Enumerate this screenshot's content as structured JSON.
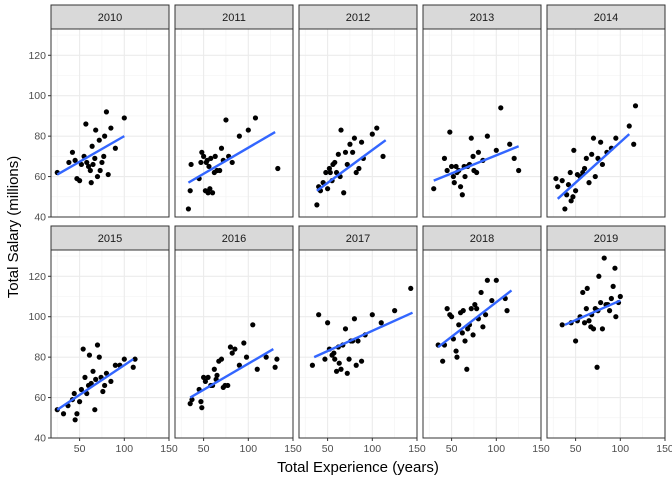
{
  "chart_data": {
    "type": "scatter",
    "facet_layout": "2 rows x 5 columns",
    "xlabel": "Total Experience (years)",
    "ylabel": "Total Salary (millions)",
    "xlim": [
      18,
      150
    ],
    "ylim": [
      40,
      133
    ],
    "x_ticks": [
      50,
      100,
      150
    ],
    "y_ticks": [
      40,
      60,
      80,
      100,
      120
    ],
    "x_tick_labels": [
      "50",
      "100",
      "150"
    ],
    "y_tick_labels": [
      "40",
      "60",
      "80",
      "100",
      "120"
    ],
    "grid": true,
    "point_color": "#000000",
    "fit_line_color": "#3366FF",
    "strip_fill": "#D9D9D9",
    "panels": [
      {
        "label": "2010",
        "fit": {
          "x1": 25,
          "y1": 61,
          "x2": 100,
          "y2": 80
        },
        "points": [
          [
            25,
            62
          ],
          [
            38,
            67
          ],
          [
            42,
            72
          ],
          [
            45,
            68
          ],
          [
            47,
            59
          ],
          [
            50,
            58
          ],
          [
            52,
            66
          ],
          [
            55,
            70
          ],
          [
            57,
            86
          ],
          [
            58,
            67
          ],
          [
            60,
            65
          ],
          [
            62,
            63
          ],
          [
            63,
            57
          ],
          [
            64,
            75
          ],
          [
            65,
            66
          ],
          [
            67,
            69
          ],
          [
            68,
            83
          ],
          [
            70,
            60
          ],
          [
            72,
            78
          ],
          [
            73,
            63
          ],
          [
            75,
            67
          ],
          [
            77,
            70
          ],
          [
            78,
            80
          ],
          [
            80,
            92
          ],
          [
            82,
            61
          ],
          [
            85,
            84
          ],
          [
            90,
            74
          ],
          [
            100,
            89
          ]
        ]
      },
      {
        "label": "2011",
        "fit": {
          "x1": 33,
          "y1": 57,
          "x2": 130,
          "y2": 82
        },
        "points": [
          [
            33,
            44
          ],
          [
            35,
            53
          ],
          [
            36,
            66
          ],
          [
            45,
            59
          ],
          [
            47,
            67
          ],
          [
            48,
            72
          ],
          [
            50,
            70
          ],
          [
            52,
            53
          ],
          [
            53,
            67
          ],
          [
            54,
            68
          ],
          [
            55,
            52
          ],
          [
            56,
            65
          ],
          [
            57,
            54
          ],
          [
            58,
            69
          ],
          [
            60,
            52
          ],
          [
            62,
            62
          ],
          [
            63,
            70
          ],
          [
            65,
            63
          ],
          [
            68,
            63
          ],
          [
            70,
            74
          ],
          [
            72,
            68
          ],
          [
            75,
            88
          ],
          [
            78,
            70
          ],
          [
            82,
            67
          ],
          [
            90,
            80
          ],
          [
            100,
            83
          ],
          [
            108,
            89
          ],
          [
            133,
            64
          ]
        ]
      },
      {
        "label": "2012",
        "fit": {
          "x1": 38,
          "y1": 53,
          "x2": 115,
          "y2": 78
        },
        "points": [
          [
            38,
            46
          ],
          [
            40,
            55
          ],
          [
            42,
            53
          ],
          [
            45,
            57
          ],
          [
            48,
            62
          ],
          [
            50,
            54
          ],
          [
            52,
            64
          ],
          [
            53,
            62
          ],
          [
            55,
            58
          ],
          [
            56,
            66
          ],
          [
            58,
            67
          ],
          [
            60,
            62
          ],
          [
            62,
            71
          ],
          [
            64,
            60
          ],
          [
            65,
            83
          ],
          [
            68,
            52
          ],
          [
            70,
            72
          ],
          [
            72,
            66
          ],
          [
            75,
            76
          ],
          [
            78,
            72
          ],
          [
            80,
            79
          ],
          [
            82,
            62
          ],
          [
            85,
            64
          ],
          [
            88,
            77
          ],
          [
            90,
            69
          ],
          [
            100,
            81
          ],
          [
            105,
            84
          ],
          [
            112,
            70
          ]
        ]
      },
      {
        "label": "2013",
        "fit": {
          "x1": 30,
          "y1": 58,
          "x2": 125,
          "y2": 75
        },
        "points": [
          [
            30,
            54
          ],
          [
            42,
            69
          ],
          [
            45,
            63
          ],
          [
            48,
            82
          ],
          [
            50,
            65
          ],
          [
            52,
            60
          ],
          [
            53,
            57
          ],
          [
            55,
            65
          ],
          [
            56,
            62
          ],
          [
            58,
            63
          ],
          [
            60,
            55
          ],
          [
            62,
            51
          ],
          [
            64,
            65
          ],
          [
            65,
            60
          ],
          [
            68,
            65
          ],
          [
            70,
            66
          ],
          [
            72,
            79
          ],
          [
            74,
            70
          ],
          [
            75,
            63
          ],
          [
            78,
            62
          ],
          [
            80,
            72
          ],
          [
            85,
            68
          ],
          [
            90,
            80
          ],
          [
            100,
            73
          ],
          [
            105,
            94
          ],
          [
            115,
            76
          ],
          [
            120,
            69
          ],
          [
            125,
            63
          ]
        ]
      },
      {
        "label": "2014",
        "fit": {
          "x1": 30,
          "y1": 49,
          "x2": 110,
          "y2": 81
        },
        "points": [
          [
            28,
            59
          ],
          [
            30,
            55
          ],
          [
            35,
            58
          ],
          [
            38,
            44
          ],
          [
            40,
            51
          ],
          [
            42,
            56
          ],
          [
            44,
            62
          ],
          [
            45,
            48
          ],
          [
            47,
            50
          ],
          [
            48,
            73
          ],
          [
            50,
            53
          ],
          [
            52,
            61
          ],
          [
            55,
            60
          ],
          [
            58,
            62
          ],
          [
            60,
            64
          ],
          [
            62,
            69
          ],
          [
            65,
            57
          ],
          [
            68,
            71
          ],
          [
            70,
            79
          ],
          [
            72,
            60
          ],
          [
            75,
            69
          ],
          [
            78,
            77
          ],
          [
            80,
            66
          ],
          [
            85,
            72
          ],
          [
            90,
            74
          ],
          [
            95,
            79
          ],
          [
            110,
            85
          ],
          [
            115,
            76
          ],
          [
            117,
            95
          ]
        ]
      },
      {
        "label": "2015",
        "fit": {
          "x1": 25,
          "y1": 54,
          "x2": 110,
          "y2": 79
        },
        "points": [
          [
            25,
            54
          ],
          [
            32,
            52
          ],
          [
            37,
            56
          ],
          [
            42,
            59
          ],
          [
            44,
            62
          ],
          [
            45,
            49
          ],
          [
            47,
            52
          ],
          [
            50,
            58
          ],
          [
            52,
            64
          ],
          [
            54,
            84
          ],
          [
            56,
            70
          ],
          [
            58,
            62
          ],
          [
            60,
            66
          ],
          [
            61,
            81
          ],
          [
            63,
            67
          ],
          [
            65,
            73
          ],
          [
            67,
            54
          ],
          [
            68,
            69
          ],
          [
            70,
            86
          ],
          [
            72,
            80
          ],
          [
            74,
            70
          ],
          [
            76,
            63
          ],
          [
            78,
            66
          ],
          [
            80,
            72
          ],
          [
            85,
            68
          ],
          [
            90,
            76
          ],
          [
            95,
            76
          ],
          [
            100,
            79
          ],
          [
            110,
            75
          ],
          [
            112,
            79
          ]
        ]
      },
      {
        "label": "2016",
        "fit": {
          "x1": 35,
          "y1": 60,
          "x2": 128,
          "y2": 84
        },
        "points": [
          [
            35,
            57
          ],
          [
            37,
            59
          ],
          [
            45,
            64
          ],
          [
            47,
            58
          ],
          [
            48,
            55
          ],
          [
            50,
            70
          ],
          [
            52,
            68
          ],
          [
            55,
            70
          ],
          [
            58,
            66
          ],
          [
            60,
            66
          ],
          [
            62,
            74
          ],
          [
            64,
            69
          ],
          [
            65,
            71
          ],
          [
            67,
            78
          ],
          [
            70,
            79
          ],
          [
            72,
            65
          ],
          [
            74,
            66
          ],
          [
            77,
            66
          ],
          [
            80,
            85
          ],
          [
            82,
            82
          ],
          [
            85,
            84
          ],
          [
            90,
            76
          ],
          [
            95,
            87
          ],
          [
            98,
            80
          ],
          [
            105,
            96
          ],
          [
            110,
            74
          ],
          [
            120,
            80
          ],
          [
            130,
            75
          ],
          [
            132,
            79
          ]
        ]
      },
      {
        "label": "2017",
        "fit": {
          "x1": 35,
          "y1": 80,
          "x2": 145,
          "y2": 102
        },
        "points": [
          [
            33,
            76
          ],
          [
            40,
            101
          ],
          [
            47,
            79
          ],
          [
            50,
            97
          ],
          [
            52,
            84
          ],
          [
            55,
            81
          ],
          [
            57,
            82
          ],
          [
            58,
            79
          ],
          [
            60,
            73
          ],
          [
            62,
            85
          ],
          [
            63,
            77
          ],
          [
            65,
            74
          ],
          [
            67,
            86
          ],
          [
            70,
            94
          ],
          [
            72,
            72
          ],
          [
            74,
            79
          ],
          [
            76,
            88
          ],
          [
            78,
            88
          ],
          [
            80,
            99
          ],
          [
            82,
            76
          ],
          [
            84,
            88
          ],
          [
            88,
            78
          ],
          [
            92,
            91
          ],
          [
            100,
            101
          ],
          [
            110,
            97
          ],
          [
            125,
            103
          ],
          [
            143,
            114
          ]
        ]
      },
      {
        "label": "2018",
        "fit": {
          "x1": 35,
          "y1": 85,
          "x2": 117,
          "y2": 113
        },
        "points": [
          [
            35,
            86
          ],
          [
            40,
            78
          ],
          [
            42,
            86
          ],
          [
            45,
            104
          ],
          [
            48,
            101
          ],
          [
            50,
            100
          ],
          [
            52,
            89
          ],
          [
            55,
            83
          ],
          [
            56,
            80
          ],
          [
            58,
            96
          ],
          [
            60,
            102
          ],
          [
            62,
            92
          ],
          [
            63,
            103
          ],
          [
            65,
            88
          ],
          [
            67,
            74
          ],
          [
            68,
            94
          ],
          [
            70,
            96
          ],
          [
            72,
            104
          ],
          [
            74,
            91
          ],
          [
            76,
            106
          ],
          [
            78,
            104
          ],
          [
            80,
            99
          ],
          [
            83,
            112
          ],
          [
            85,
            95
          ],
          [
            88,
            101
          ],
          [
            90,
            118
          ],
          [
            95,
            108
          ],
          [
            100,
            118
          ],
          [
            110,
            109
          ],
          [
            112,
            103
          ]
        ]
      },
      {
        "label": "2019",
        "fit": {
          "x1": 38,
          "y1": 96,
          "x2": 100,
          "y2": 108
        },
        "points": [
          [
            35,
            96
          ],
          [
            45,
            97
          ],
          [
            50,
            88
          ],
          [
            52,
            98
          ],
          [
            55,
            100
          ],
          [
            58,
            112
          ],
          [
            60,
            97
          ],
          [
            62,
            104
          ],
          [
            63,
            114
          ],
          [
            65,
            98
          ],
          [
            67,
            95
          ],
          [
            68,
            101
          ],
          [
            70,
            94
          ],
          [
            72,
            104
          ],
          [
            74,
            75
          ],
          [
            75,
            103
          ],
          [
            76,
            120
          ],
          [
            78,
            107
          ],
          [
            80,
            94
          ],
          [
            82,
            129
          ],
          [
            84,
            106
          ],
          [
            86,
            106
          ],
          [
            88,
            103
          ],
          [
            90,
            109
          ],
          [
            92,
            115
          ],
          [
            94,
            124
          ],
          [
            95,
            100
          ],
          [
            98,
            107
          ],
          [
            100,
            110
          ]
        ]
      }
    ]
  }
}
